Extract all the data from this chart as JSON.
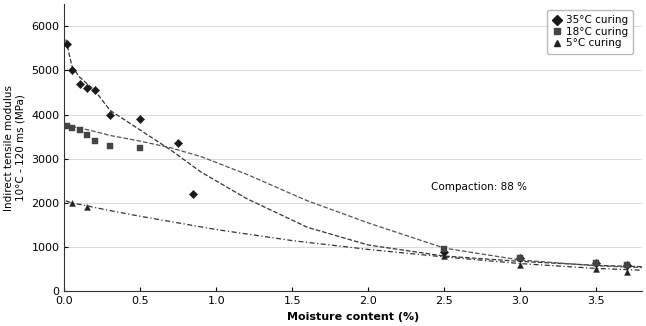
{
  "xlabel": "Moisture content (%)",
  "ylabel": "Indirect tensile modulus\n10°C - 120 ms (MPa)",
  "xlim": [
    0,
    3.8
  ],
  "ylim": [
    0,
    6500
  ],
  "xticks": [
    0,
    0.5,
    1,
    1.5,
    2,
    2.5,
    3,
    3.5
  ],
  "yticks": [
    0,
    1000,
    2000,
    3000,
    4000,
    5000,
    6000
  ],
  "legend_labels": [
    "35°C curing",
    "18°C curing",
    "5°C curing"
  ],
  "annotation": "Compaction: 88 %",
  "series_35": {
    "x_data": [
      0.02,
      0.05,
      0.1,
      0.15,
      0.2,
      0.3,
      0.5,
      0.75,
      0.85,
      2.5,
      3.0,
      3.5,
      3.7
    ],
    "y_data": [
      5600,
      5000,
      4700,
      4600,
      4550,
      4000,
      3900,
      3350,
      2200,
      900,
      750,
      650,
      600
    ],
    "marker": "D",
    "color": "#1a1a1a"
  },
  "series_18": {
    "x_data": [
      0.02,
      0.05,
      0.1,
      0.15,
      0.2,
      0.3,
      0.5,
      2.5,
      3.0,
      3.5,
      3.7
    ],
    "y_data": [
      3750,
      3700,
      3650,
      3550,
      3400,
      3300,
      3250,
      950,
      750,
      650,
      600
    ],
    "marker": "s",
    "color": "#444444"
  },
  "series_5": {
    "x_data": [
      0.05,
      0.15,
      2.5,
      3.0,
      3.5,
      3.7
    ],
    "y_data": [
      2000,
      1900,
      800,
      600,
      500,
      450
    ],
    "marker": "^",
    "color": "#222222"
  },
  "curve_35_x": [
    0.01,
    0.05,
    0.1,
    0.2,
    0.3,
    0.5,
    0.7,
    0.9,
    1.2,
    1.6,
    2.0,
    2.5,
    3.0,
    3.5,
    3.8
  ],
  "curve_35_y": [
    5700,
    5100,
    4850,
    4550,
    4100,
    3650,
    3200,
    2700,
    2100,
    1450,
    1050,
    800,
    680,
    590,
    560
  ],
  "curve_18_x": [
    0.01,
    0.05,
    0.1,
    0.2,
    0.3,
    0.5,
    0.7,
    0.9,
    1.2,
    1.6,
    2.0,
    2.5,
    3.0,
    3.5,
    3.8
  ],
  "curve_18_y": [
    3800,
    3730,
    3700,
    3620,
    3530,
    3400,
    3250,
    3050,
    2650,
    2050,
    1550,
    980,
    710,
    580,
    540
  ],
  "curve_5_x": [
    0.01,
    0.05,
    0.1,
    0.2,
    0.3,
    0.5,
    0.7,
    1.0,
    1.5,
    2.0,
    2.5,
    3.0,
    3.5,
    3.8
  ],
  "curve_5_y": [
    2050,
    2000,
    1970,
    1900,
    1830,
    1700,
    1580,
    1400,
    1150,
    950,
    780,
    630,
    520,
    480
  ]
}
